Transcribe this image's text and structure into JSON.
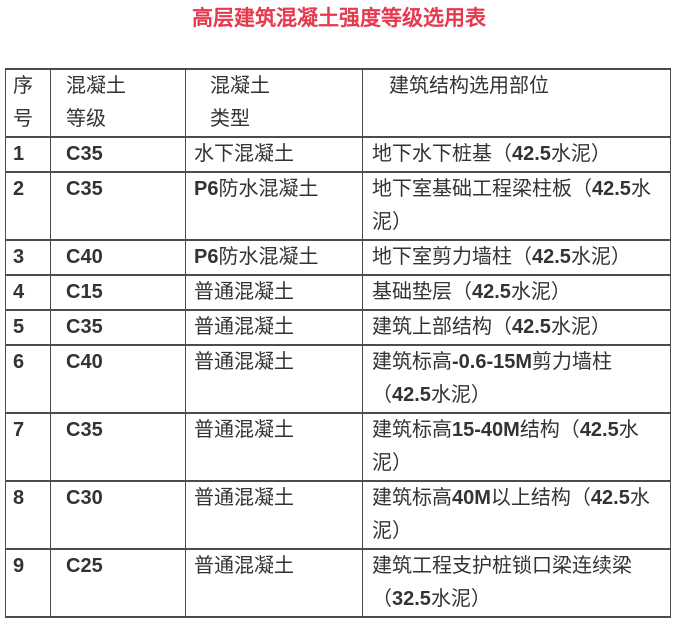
{
  "colors": {
    "title_red": "#e5394e",
    "table_border": "#4c4c4c",
    "body_text": "#333333",
    "background": "#ffffff"
  },
  "title": {
    "text": "高层建筑混凝土强度等级选用表"
  },
  "table": {
    "columns": [
      {
        "id": "index",
        "line1": "序",
        "line2": "号"
      },
      {
        "id": "grade",
        "line1": "混凝土",
        "line2": "等级"
      },
      {
        "id": "type",
        "line1": "混凝土",
        "line2": "类型"
      },
      {
        "id": "location",
        "line1": "建筑结构选用部位",
        "line2": ""
      }
    ],
    "rows": [
      {
        "index": "1",
        "grade": "C35",
        "type": "水下混凝土",
        "location": "地下水下桩基（42.5水泥）"
      },
      {
        "index": "2",
        "grade": "C35",
        "type": "P6防水混凝土",
        "location": "地下室基础工程梁柱板（42.5水泥）"
      },
      {
        "index": "3",
        "grade": "C40",
        "type": "P6防水混凝土",
        "location": "地下室剪力墙柱（42.5水泥）"
      },
      {
        "index": "4",
        "grade": "C15",
        "type": "普通混凝土",
        "location": "基础垫层（42.5水泥）"
      },
      {
        "index": "5",
        "grade": "C35",
        "type": "普通混凝土",
        "location": "建筑上部结构（42.5水泥）"
      },
      {
        "index": "6",
        "grade": "C40",
        "type": "普通混凝土",
        "location": "建筑标高-0.6-15M剪力墙柱（42.5水泥）"
      },
      {
        "index": "7",
        "grade": "C35",
        "type": "普通混凝土",
        "location": "建筑标高15-40M结构（42.5水泥）"
      },
      {
        "index": "8",
        "grade": "C30",
        "type": "普通混凝土",
        "location": "建筑标高40M以上结构（42.5水泥）"
      },
      {
        "index": "9",
        "grade": "C25",
        "type": "普通混凝土",
        "location": "建筑工程支护桩锁口梁连续梁（32.5水泥）"
      }
    ]
  }
}
